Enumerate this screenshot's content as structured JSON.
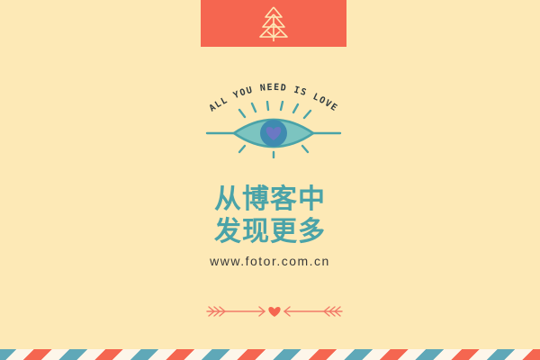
{
  "colors": {
    "background": "#fde9b6",
    "accent_red": "#f56650",
    "accent_teal": "#4aa3a8",
    "stripe_blue": "#5fa8b8"
  },
  "top_tab": {
    "icon": "tree-icon"
  },
  "motto": "ALL YOU NEED IS LOVE",
  "eye": {
    "icon": "eye-heart-icon"
  },
  "headline": {
    "line1": "从博客中",
    "line2": "发现更多"
  },
  "website": "www.fotor.com.cn",
  "divider": {
    "icon": "arrow-heart-icon"
  },
  "border": {
    "pattern": "airmail-stripes"
  }
}
